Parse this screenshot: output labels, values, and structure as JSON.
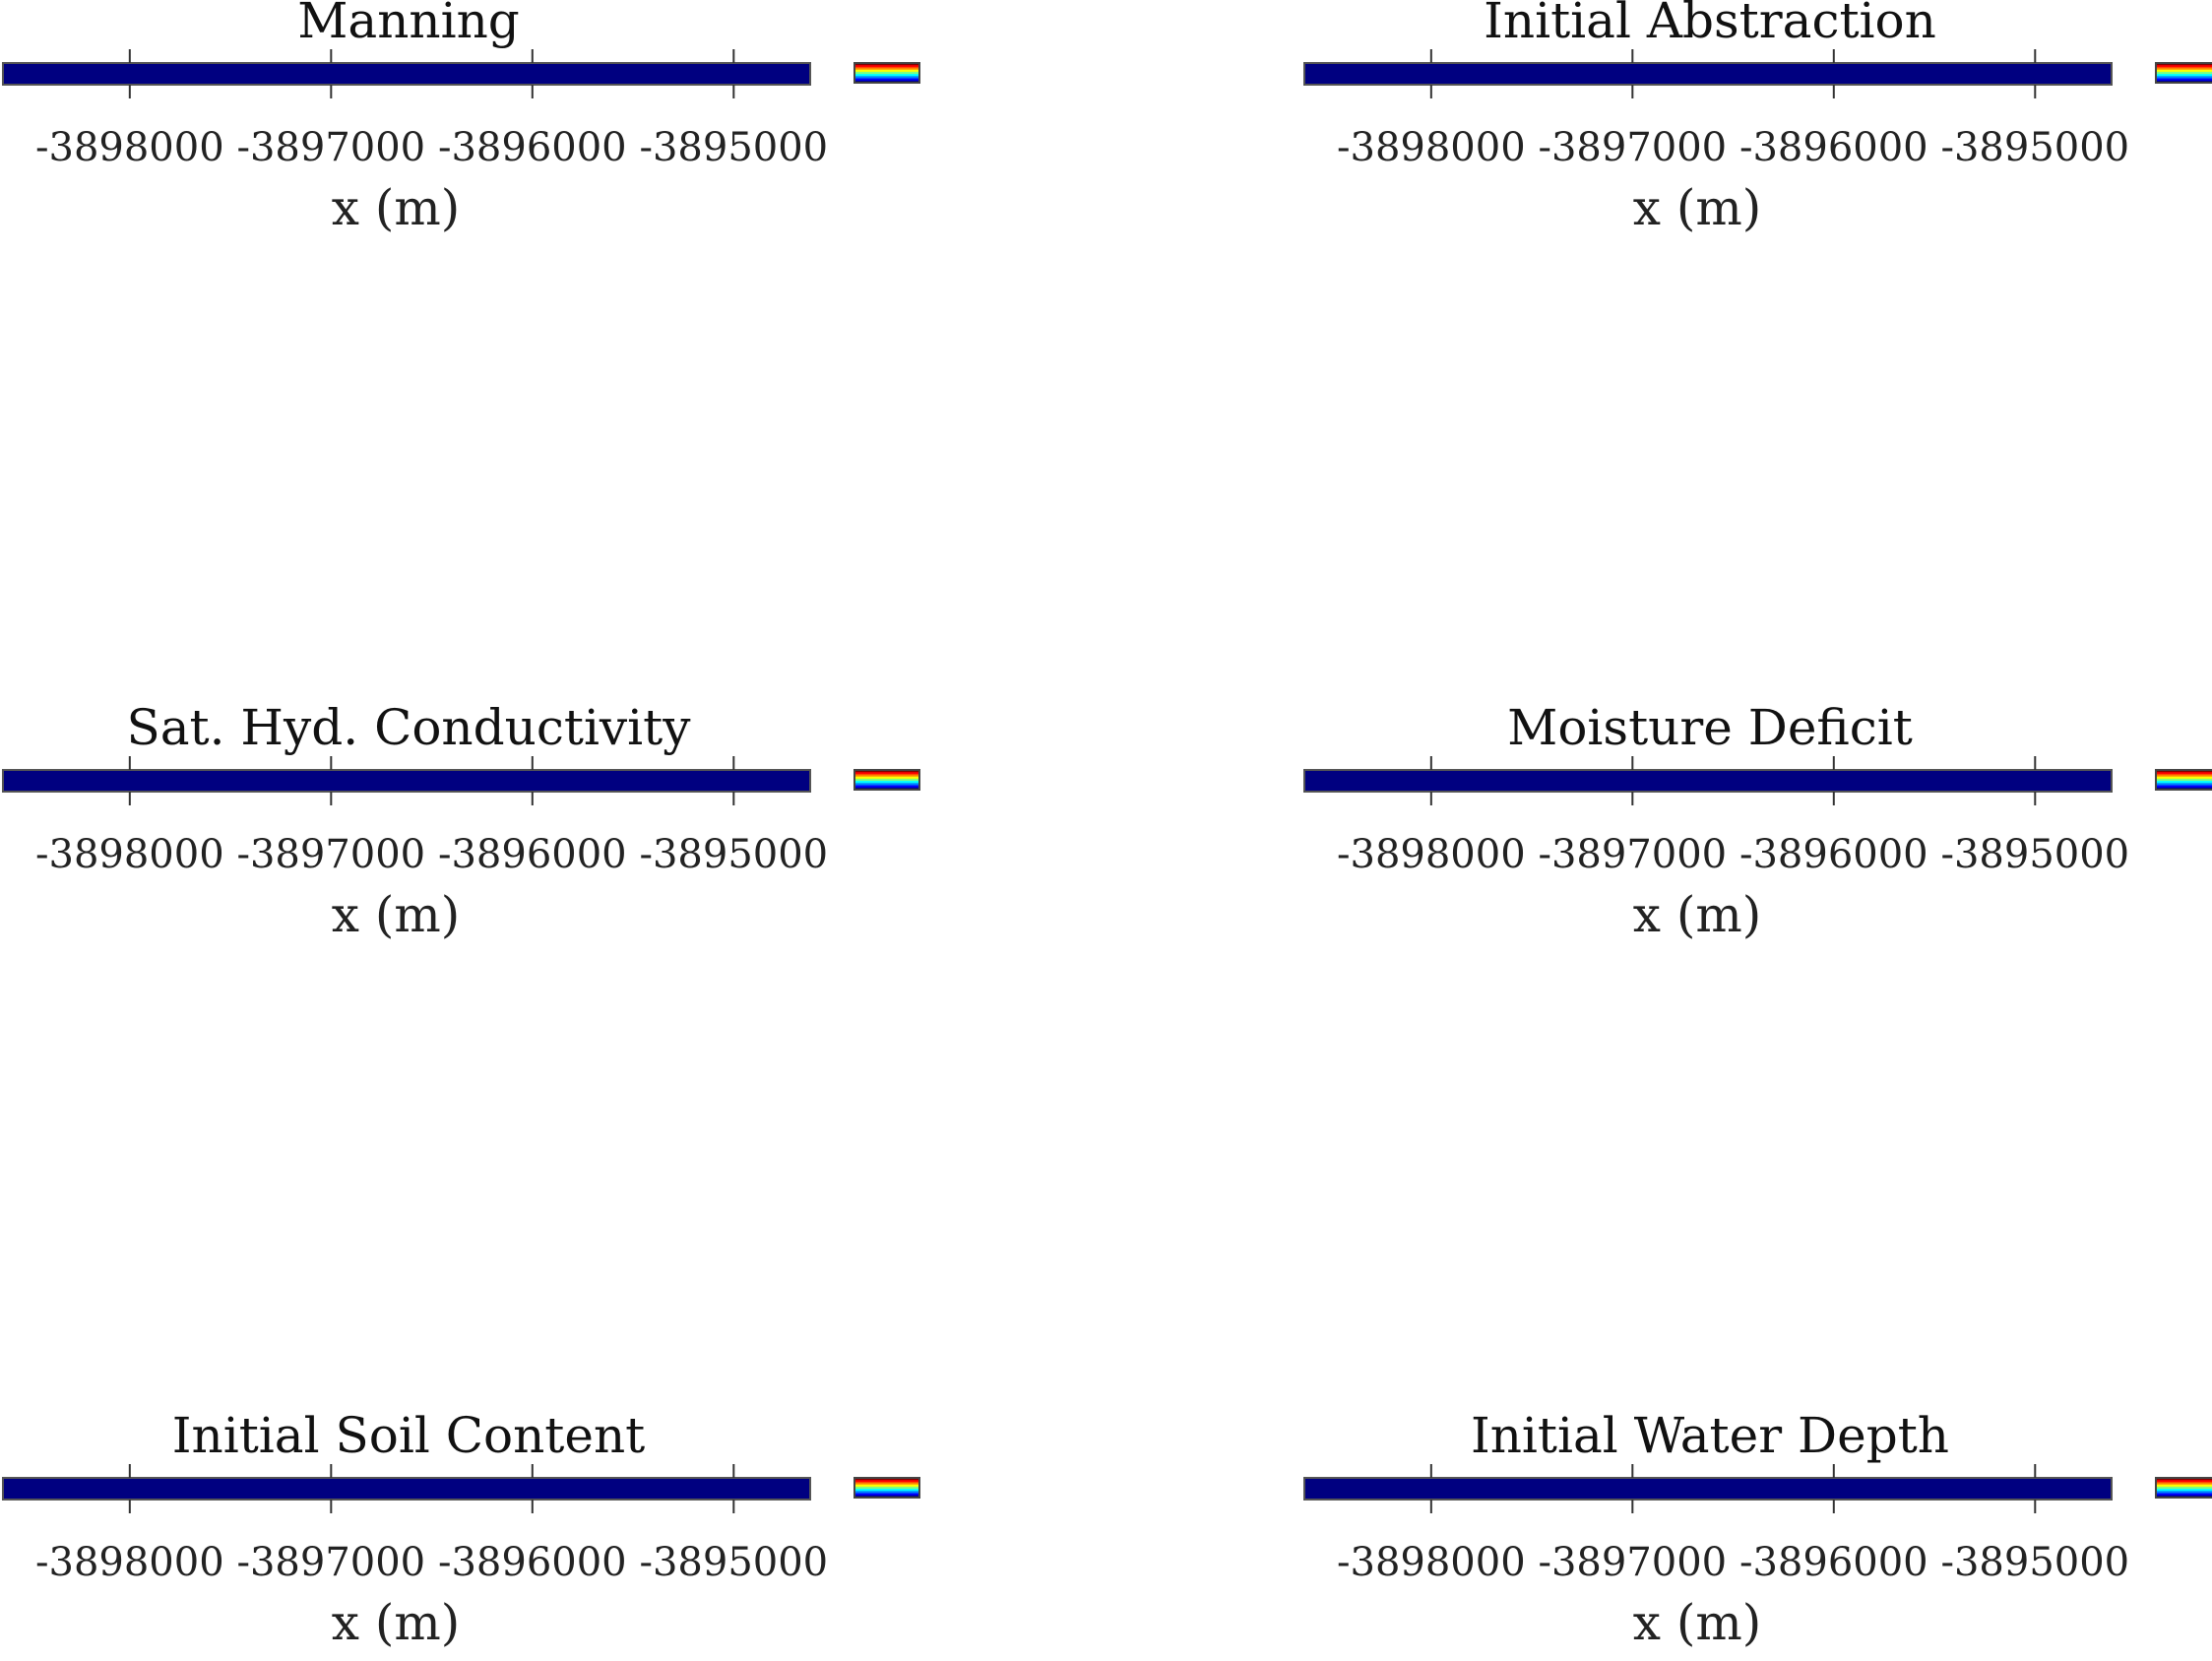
{
  "chart_data": [
    {
      "type": "heatmap",
      "title": "Manning",
      "xlabel": "x (m)",
      "x_ticks": [
        -3898000,
        -3897000,
        -3896000,
        -3895000
      ],
      "xlim": [
        -3898630,
        -3894620
      ],
      "fill_color": "#000080",
      "colormap": "jet",
      "colorbar": true,
      "grid": false
    },
    {
      "type": "heatmap",
      "title": "Initial Abstraction",
      "xlabel": "x (m)",
      "x_ticks": [
        -3898000,
        -3897000,
        -3896000,
        -3895000
      ],
      "xlim": [
        -3898630,
        -3894620
      ],
      "fill_color": "#000080",
      "colormap": "jet",
      "colorbar": true,
      "grid": false
    },
    {
      "type": "heatmap",
      "title": "Sat. Hyd. Conductivity",
      "xlabel": "x (m)",
      "x_ticks": [
        -3898000,
        -3897000,
        -3896000,
        -3895000
      ],
      "xlim": [
        -3898630,
        -3894620
      ],
      "fill_color": "#000080",
      "colormap": "jet",
      "colorbar": true,
      "grid": false
    },
    {
      "type": "heatmap",
      "title": "Moisture Deficit",
      "xlabel": "x (m)",
      "x_ticks": [
        -3898000,
        -3897000,
        -3896000,
        -3895000
      ],
      "xlim": [
        -3898630,
        -3894620
      ],
      "fill_color": "#000080",
      "colormap": "jet",
      "colorbar": true,
      "grid": false
    },
    {
      "type": "heatmap",
      "title": "Initial Soil Content",
      "xlabel": "x (m)",
      "x_ticks": [
        -3898000,
        -3897000,
        -3896000,
        -3895000
      ],
      "xlim": [
        -3898630,
        -3894620
      ],
      "fill_color": "#000080",
      "colormap": "jet",
      "colorbar": true,
      "grid": false
    },
    {
      "type": "heatmap",
      "title": "Initial Water Depth",
      "xlabel": "x (m)",
      "x_ticks": [
        -3898000,
        -3897000,
        -3896000,
        -3895000
      ],
      "xlim": [
        -3898630,
        -3894620
      ],
      "fill_color": "#000080",
      "colormap": "jet",
      "colorbar": true,
      "grid": false
    }
  ]
}
